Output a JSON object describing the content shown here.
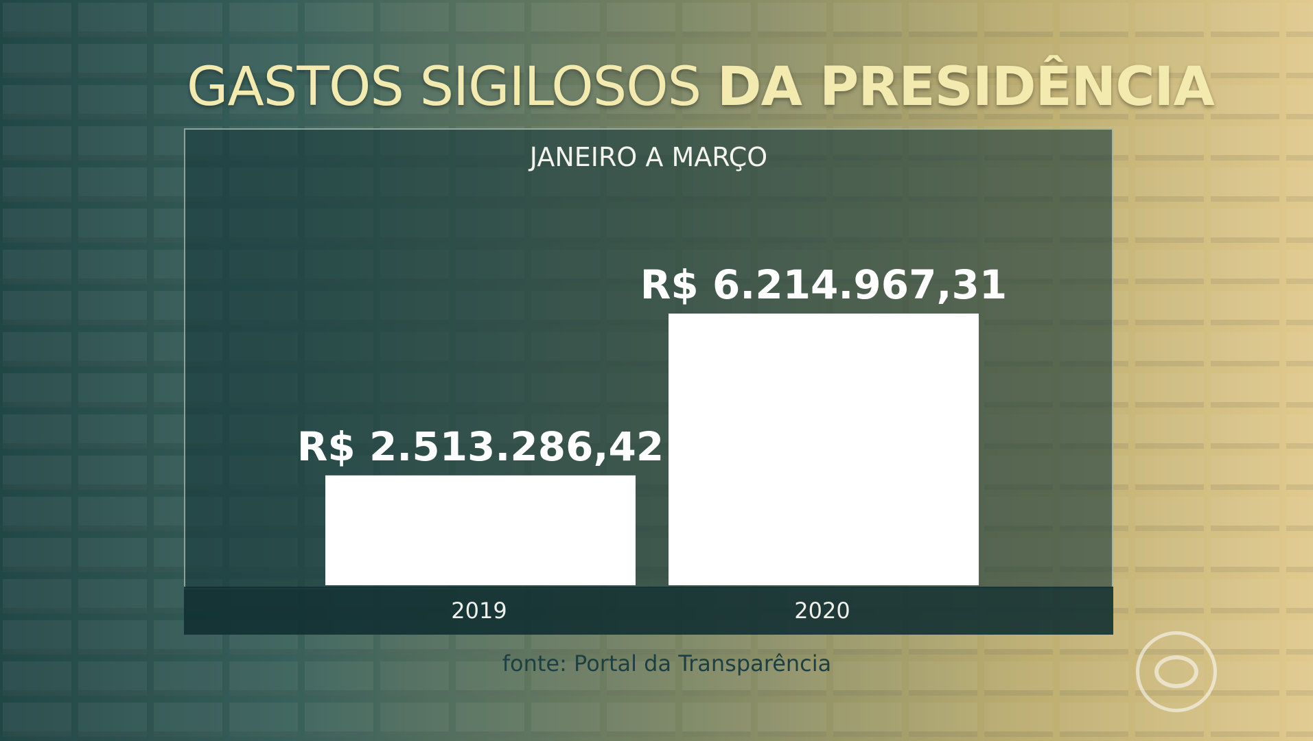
{
  "title": {
    "part1": "GASTOS SIGILOSOS",
    "part2": "DA PRESIDÊNCIA"
  },
  "source": "fonte: Portal da Transparência",
  "colors": {
    "bar": "#ffffff",
    "title": "#f3eab0",
    "panel": "#183a3c"
  },
  "logo_icon": "tv-globo-logo-icon",
  "chart_data": {
    "type": "bar",
    "title": "GASTOS SIGILOSOS DA PRESIDÊNCIA",
    "subtitle": "JANEIRO A MARÇO",
    "categories": [
      "2019",
      "2020"
    ],
    "values": [
      2513286.42,
      6214967.31
    ],
    "value_labels": [
      "R$ 2.513.286,42",
      "R$ 6.214.967,31"
    ],
    "xlabel": "",
    "ylabel": "",
    "ylim": [
      0,
      6214967.31
    ],
    "grid": false,
    "legend": "none"
  }
}
